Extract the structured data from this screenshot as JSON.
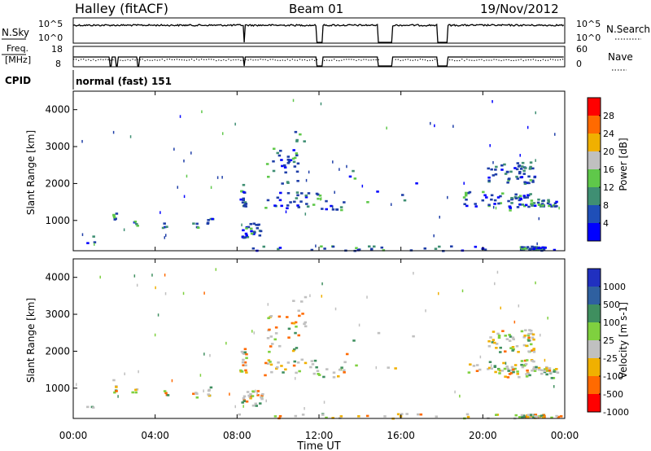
{
  "header": {
    "station": "Halley (fitACF)",
    "beam": "Beam 01",
    "date": "19/Nov/2012"
  },
  "status_panels": {
    "nsky_label": "N.Sky",
    "nsearch_label": "N.Search",
    "noise_ticks_left": [
      "10^5",
      "10^0"
    ],
    "noise_ticks_right": [
      "10^5",
      "10^0"
    ],
    "freq_label": "Freq.",
    "freq_unit": "[MHz]",
    "freq_ticks": [
      "18",
      "8"
    ],
    "nave_label": "Nave",
    "nave_ticks": [
      "60",
      "0"
    ],
    "cpid_label": "CPID",
    "cpid_value": "normal (fast) 151"
  },
  "chart_data": [
    {
      "type": "heatmap",
      "title": "",
      "ylabel": "Slant Range [km]",
      "xlabel": "",
      "xlim": [
        "00:00",
        "24:00"
      ],
      "ylim": [
        180,
        4500
      ],
      "y_ticks": [
        "1000",
        "2000",
        "3000",
        "4000"
      ],
      "colorbar_label": "Power [dB]",
      "colorbar_ticks": [
        "4",
        "8",
        "12",
        "16",
        "20",
        "24",
        "28"
      ],
      "colorbar_colors": [
        "#0000ff",
        "#1f4fb8",
        "#3f8f73",
        "#5fc84a",
        "#c0c0c0",
        "#f0b000",
        "#ff6a00",
        "#ff0000"
      ],
      "dominant_color": "#1f3fa8"
    },
    {
      "type": "heatmap",
      "title": "",
      "ylabel": "Slant Range [km]",
      "xlabel": "Time UT",
      "xlim": [
        "00:00",
        "24:00"
      ],
      "ylim": [
        180,
        4500
      ],
      "x_ticks": [
        "00:00",
        "04:00",
        "08:00",
        "12:00",
        "16:00",
        "20:00",
        "00:00"
      ],
      "y_ticks": [
        "1000",
        "2000",
        "3000",
        "4000"
      ],
      "colorbar_label": "Velocity [m s-1]",
      "colorbar_ticks": [
        "1000",
        "500",
        "100",
        "25",
        "-25",
        "-100",
        "-500",
        "-1000"
      ],
      "colorbar_colors": [
        "#2030c0",
        "#2f60a0",
        "#3f8f5f",
        "#7fd03f",
        "#c0c0c0",
        "#f0b000",
        "#ff6a00",
        "#ff0000"
      ],
      "dominant_color": "#c0c0c0"
    }
  ]
}
